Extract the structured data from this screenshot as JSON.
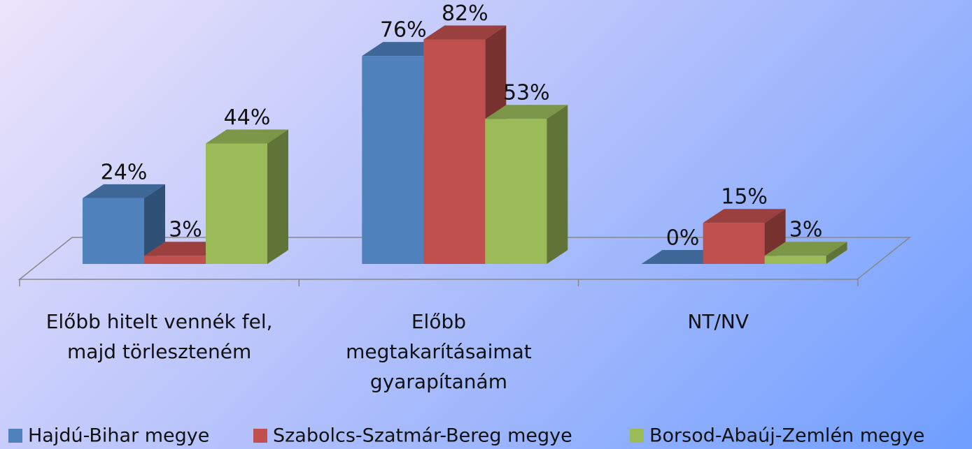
{
  "chart_data": {
    "type": "bar3d",
    "categories": [
      [
        "Előbb hitelt vennék fel,",
        "majd törleszteném"
      ],
      [
        "Előbb",
        "megtakarításaimat",
        "gyarapítanám"
      ],
      [
        "NT/NV"
      ]
    ],
    "series": [
      {
        "name": "Hajdú-Bihar megye",
        "color": "#4f81bd",
        "values": [
          24,
          76,
          0
        ],
        "value_labels": [
          "24%",
          "76%",
          "0%"
        ]
      },
      {
        "name": "Szabolcs-Szatmár-Bereg megye",
        "color": "#c0504d",
        "values": [
          3,
          82,
          15
        ],
        "value_labels": [
          "3%",
          "82%",
          "15%"
        ]
      },
      {
        "name": "Borsod-Abaúj-Zemlén megye",
        "color": "#9bbb59",
        "values": [
          44,
          53,
          3
        ],
        "value_labels": [
          "44%",
          "53%",
          "3%"
        ]
      }
    ],
    "ylim": [
      0,
      100
    ],
    "legend": "bottom"
  }
}
